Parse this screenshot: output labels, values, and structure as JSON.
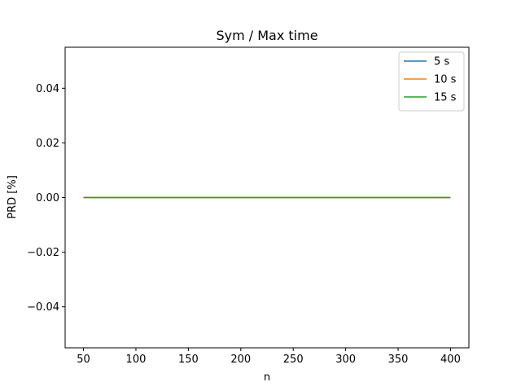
{
  "chart_data": {
    "type": "line",
    "title": "Sym / Max time",
    "xlabel": "n",
    "ylabel": "PRD [%]",
    "xlim": [
      32.5,
      417.5
    ],
    "ylim": [
      -0.055,
      0.055
    ],
    "xticks": [
      50,
      100,
      150,
      200,
      250,
      300,
      350,
      400
    ],
    "xtick_labels": [
      "50",
      "100",
      "150",
      "200",
      "250",
      "300",
      "350",
      "400"
    ],
    "yticks": [
      -0.04,
      -0.02,
      0.0,
      0.02,
      0.04
    ],
    "ytick_labels": [
      "−0.04",
      "−0.02",
      "0.00",
      "0.02",
      "0.04"
    ],
    "grid": false,
    "legend_position": "top-right",
    "series": [
      {
        "name": "5 s",
        "color": "#1f77b4",
        "x": [
          50,
          100,
          150,
          200,
          250,
          300,
          350,
          400
        ],
        "y": [
          0,
          0,
          0,
          0,
          0,
          0,
          0,
          0
        ]
      },
      {
        "name": "10 s",
        "color": "#ff7f0e",
        "x": [
          50,
          100,
          150,
          200,
          250,
          300,
          350,
          400
        ],
        "y": [
          0,
          0,
          0,
          0,
          0,
          0,
          0,
          0
        ]
      },
      {
        "name": "15 s",
        "color": "#2ca02c",
        "x": [
          50,
          100,
          150,
          200,
          250,
          300,
          350,
          400
        ],
        "y": [
          0,
          0,
          0,
          0,
          0,
          0,
          0,
          0
        ]
      }
    ]
  }
}
